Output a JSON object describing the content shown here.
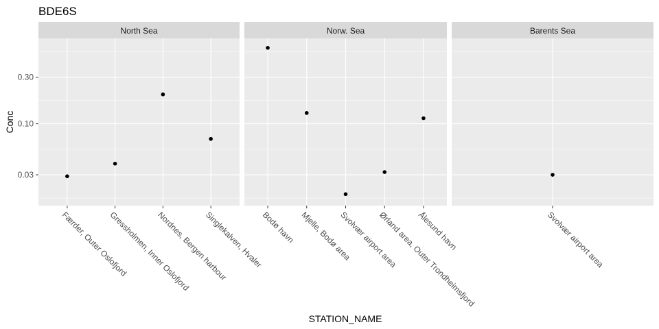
{
  "chart_data": {
    "type": "scatter",
    "title": "BDE6S",
    "xlabel": "STATION_NAME",
    "ylabel": "Conc",
    "y_scale": "log10",
    "ylim": [
      0.0145,
      0.75
    ],
    "y_ticks": [
      0.03,
      0.1,
      0.3
    ],
    "y_tick_labels": [
      "0.03",
      "0.10",
      "0.30"
    ],
    "y_minor_ticks": [
      0.0173,
      0.0548,
      0.173,
      0.548
    ],
    "grid": true,
    "facets": [
      {
        "name": "North Sea",
        "categories": [
          "Færder, Outer Oslofjord",
          "Gressholmen, Inner Oslofjord",
          "Nordnes, Bergen harbour",
          "Singlekalven, Hvaler"
        ],
        "values": [
          0.029,
          0.039,
          0.2,
          0.07
        ]
      },
      {
        "name": "Norw. Sea",
        "categories": [
          "Bodø havn",
          "Mjelle, Bodø area",
          "Svolvær airport area",
          "Ørland area, Outer Trondheimsfjord",
          "Ålesund havn"
        ],
        "values": [
          0.6,
          0.129,
          0.019,
          0.032,
          0.114
        ]
      },
      {
        "name": "Barents Sea",
        "categories": [
          "Svolvær airport area"
        ],
        "values": [
          0.03
        ]
      }
    ]
  },
  "colors": {
    "panel_background": "#ebebeb",
    "strip_background": "#d9d9d9",
    "grid_major": "#ffffff",
    "point": "#000000",
    "tick_label": "#4d4d4d"
  }
}
